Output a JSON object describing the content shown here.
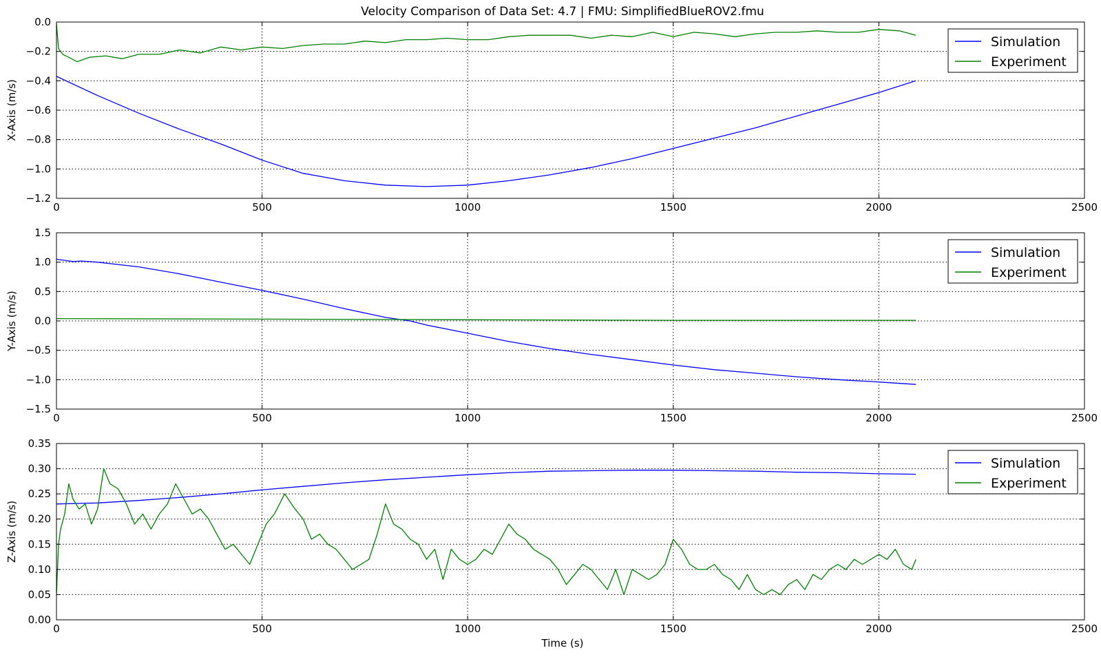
{
  "figure": {
    "title": "Velocity Comparison of Data Set: 4.7 | FMU: SimplifiedBlueROV2.fmu",
    "xlabel": "Time (s)"
  },
  "colors": {
    "simulation": "#0000ff",
    "experiment": "#008000",
    "grid": "#000000",
    "axes": "#000000"
  },
  "chart_data": [
    {
      "type": "line",
      "ylabel": "X-Axis (m/s)",
      "xlim": [
        0,
        2500
      ],
      "ylim": [
        -1.2,
        0.0
      ],
      "xticks": [
        0,
        500,
        1000,
        1500,
        2000,
        2500
      ],
      "yticks": [
        -1.2,
        -1.0,
        -0.8,
        -0.6,
        -0.4,
        -0.2,
        0.0
      ],
      "ytick_labels": [
        "−1.2",
        "−1.0",
        "−0.8",
        "−0.6",
        "−0.4",
        "−0.2",
        "0.0"
      ],
      "grid": true,
      "legend_position": "top-right",
      "series": [
        {
          "name": "Simulation",
          "color": "#0000ff",
          "x": [
            0,
            100,
            200,
            300,
            400,
            500,
            600,
            700,
            800,
            900,
            1000,
            1100,
            1200,
            1300,
            1400,
            1500,
            1600,
            1700,
            1800,
            1900,
            2000,
            2090
          ],
          "y": [
            -0.37,
            -0.5,
            -0.62,
            -0.73,
            -0.83,
            -0.94,
            -1.03,
            -1.08,
            -1.11,
            -1.12,
            -1.11,
            -1.08,
            -1.04,
            -0.99,
            -0.93,
            -0.86,
            -0.79,
            -0.72,
            -0.64,
            -0.56,
            -0.48,
            -0.4
          ]
        },
        {
          "name": "Experiment",
          "color": "#008000",
          "x": [
            0,
            5,
            15,
            30,
            50,
            80,
            120,
            160,
            200,
            250,
            300,
            350,
            400,
            450,
            500,
            550,
            600,
            650,
            700,
            750,
            800,
            850,
            900,
            950,
            1000,
            1050,
            1100,
            1150,
            1200,
            1250,
            1300,
            1350,
            1400,
            1450,
            1500,
            1550,
            1600,
            1650,
            1700,
            1750,
            1800,
            1850,
            1900,
            1950,
            2000,
            2050,
            2090
          ],
          "y": [
            -0.01,
            -0.18,
            -0.22,
            -0.24,
            -0.27,
            -0.24,
            -0.23,
            -0.25,
            -0.22,
            -0.22,
            -0.19,
            -0.21,
            -0.17,
            -0.19,
            -0.17,
            -0.18,
            -0.16,
            -0.15,
            -0.15,
            -0.13,
            -0.14,
            -0.12,
            -0.12,
            -0.11,
            -0.12,
            -0.12,
            -0.1,
            -0.09,
            -0.09,
            -0.09,
            -0.11,
            -0.09,
            -0.1,
            -0.07,
            -0.1,
            -0.07,
            -0.08,
            -0.1,
            -0.08,
            -0.07,
            -0.07,
            -0.06,
            -0.07,
            -0.07,
            -0.05,
            -0.06,
            -0.09
          ]
        }
      ]
    },
    {
      "type": "line",
      "ylabel": "Y-Axis (m/s)",
      "xlim": [
        0,
        2500
      ],
      "ylim": [
        -1.5,
        1.5
      ],
      "xticks": [
        0,
        500,
        1000,
        1500,
        2000,
        2500
      ],
      "yticks": [
        -1.5,
        -1.0,
        -0.5,
        0.0,
        0.5,
        1.0,
        1.5
      ],
      "ytick_labels": [
        "−1.5",
        "−1.0",
        "−0.5",
        "0.0",
        "0.5",
        "1.0",
        "1.5"
      ],
      "grid": true,
      "legend_position": "top-right",
      "series": [
        {
          "name": "Simulation",
          "color": "#0000ff",
          "x": [
            0,
            20,
            40,
            60,
            100,
            200,
            300,
            400,
            500,
            600,
            700,
            800,
            860,
            900,
            1000,
            1100,
            1200,
            1300,
            1400,
            1500,
            1600,
            1700,
            1800,
            1900,
            2000,
            2090
          ],
          "y": [
            1.05,
            1.03,
            1.01,
            1.02,
            1.0,
            0.92,
            0.8,
            0.66,
            0.52,
            0.37,
            0.21,
            0.06,
            0.0,
            -0.07,
            -0.21,
            -0.35,
            -0.47,
            -0.57,
            -0.66,
            -0.75,
            -0.83,
            -0.89,
            -0.95,
            -1.0,
            -1.04,
            -1.08
          ]
        },
        {
          "name": "Experiment",
          "color": "#008000",
          "x": [
            0,
            500,
            1000,
            1500,
            2000,
            2090
          ],
          "y": [
            0.04,
            0.03,
            0.02,
            0.01,
            0.01,
            0.01
          ]
        }
      ]
    },
    {
      "type": "line",
      "ylabel": "Z-Axis (m/s)",
      "xlim": [
        0,
        2500
      ],
      "ylim": [
        0.0,
        0.35
      ],
      "xticks": [
        0,
        500,
        1000,
        1500,
        2000,
        2500
      ],
      "yticks": [
        0.0,
        0.05,
        0.1,
        0.15,
        0.2,
        0.25,
        0.3,
        0.35
      ],
      "ytick_labels": [
        "0.00",
        "0.05",
        "0.10",
        "0.15",
        "0.20",
        "0.25",
        "0.30",
        "0.35"
      ],
      "grid": true,
      "legend_position": "top-right",
      "series": [
        {
          "name": "Simulation",
          "color": "#0000ff",
          "x": [
            0,
            100,
            200,
            300,
            400,
            500,
            600,
            700,
            800,
            900,
            1000,
            1100,
            1200,
            1300,
            1400,
            1500,
            1600,
            1700,
            1800,
            1900,
            2000,
            2090
          ],
          "y": [
            0.23,
            0.232,
            0.237,
            0.243,
            0.25,
            0.258,
            0.265,
            0.272,
            0.278,
            0.283,
            0.288,
            0.292,
            0.295,
            0.296,
            0.297,
            0.297,
            0.296,
            0.295,
            0.293,
            0.292,
            0.29,
            0.289
          ]
        },
        {
          "name": "Experiment",
          "color": "#008000",
          "x": [
            0,
            5,
            10,
            20,
            30,
            40,
            55,
            70,
            85,
            100,
            115,
            130,
            150,
            170,
            190,
            210,
            230,
            250,
            270,
            290,
            310,
            330,
            350,
            370,
            390,
            410,
            430,
            450,
            470,
            490,
            510,
            530,
            555,
            580,
            600,
            620,
            640,
            660,
            680,
            700,
            720,
            740,
            760,
            780,
            800,
            820,
            840,
            860,
            880,
            900,
            920,
            940,
            960,
            980,
            1000,
            1020,
            1040,
            1060,
            1080,
            1100,
            1120,
            1140,
            1160,
            1180,
            1200,
            1220,
            1240,
            1260,
            1280,
            1300,
            1320,
            1340,
            1360,
            1380,
            1400,
            1420,
            1440,
            1460,
            1480,
            1500,
            1520,
            1540,
            1560,
            1580,
            1600,
            1620,
            1640,
            1660,
            1680,
            1700,
            1720,
            1740,
            1760,
            1780,
            1800,
            1820,
            1840,
            1860,
            1880,
            1900,
            1920,
            1940,
            1960,
            1980,
            2000,
            2020,
            2040,
            2060,
            2080,
            2090
          ],
          "y": [
            0.05,
            0.15,
            0.18,
            0.21,
            0.27,
            0.24,
            0.22,
            0.23,
            0.19,
            0.22,
            0.3,
            0.27,
            0.26,
            0.23,
            0.19,
            0.21,
            0.18,
            0.21,
            0.23,
            0.27,
            0.24,
            0.21,
            0.22,
            0.2,
            0.17,
            0.14,
            0.15,
            0.13,
            0.11,
            0.15,
            0.19,
            0.21,
            0.25,
            0.22,
            0.2,
            0.16,
            0.17,
            0.15,
            0.14,
            0.12,
            0.1,
            0.11,
            0.12,
            0.17,
            0.23,
            0.19,
            0.18,
            0.16,
            0.15,
            0.12,
            0.14,
            0.08,
            0.14,
            0.12,
            0.11,
            0.12,
            0.14,
            0.13,
            0.16,
            0.19,
            0.17,
            0.16,
            0.14,
            0.13,
            0.12,
            0.1,
            0.07,
            0.09,
            0.11,
            0.1,
            0.08,
            0.06,
            0.1,
            0.05,
            0.1,
            0.09,
            0.08,
            0.09,
            0.11,
            0.16,
            0.14,
            0.11,
            0.1,
            0.1,
            0.11,
            0.09,
            0.08,
            0.06,
            0.09,
            0.06,
            0.05,
            0.06,
            0.05,
            0.07,
            0.08,
            0.06,
            0.09,
            0.08,
            0.1,
            0.11,
            0.1,
            0.12,
            0.11,
            0.12,
            0.13,
            0.12,
            0.14,
            0.11,
            0.1,
            0.12
          ]
        }
      ]
    }
  ]
}
